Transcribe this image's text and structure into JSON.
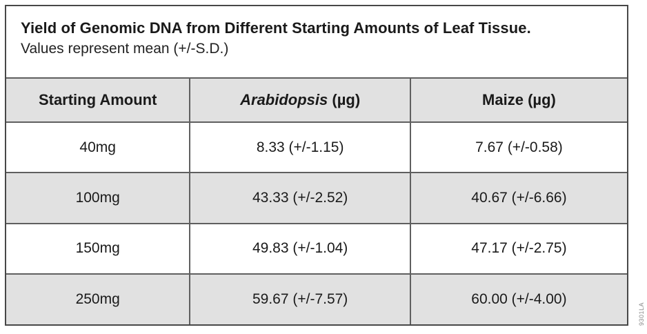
{
  "figure": {
    "title": "Yield of Genomic DNA from Different Starting Amounts of Leaf Tissue.",
    "subtitle": "Values represent mean (+/-S.D.)"
  },
  "table": {
    "header": {
      "col1": "Starting Amount",
      "col2_italic": "Arabidopsis",
      "col2_rest": " (µg)",
      "col3": "Maize (µg)"
    },
    "rows": [
      {
        "amount": "40mg",
        "arabidopsis": "8.33 (+/-1.15)",
        "maize": "7.67 (+/-0.58)"
      },
      {
        "amount": "100mg",
        "arabidopsis": "43.33 (+/-2.52)",
        "maize": "40.67 (+/-6.66)"
      },
      {
        "amount": "150mg",
        "arabidopsis": "49.83 (+/-1.04)",
        "maize": "47.17 (+/-2.75)"
      },
      {
        "amount": "250mg",
        "arabidopsis": "59.67 (+/-7.57)",
        "maize": "60.00 (+/-4.00)"
      }
    ]
  },
  "watermark": {
    "code": "9301LA"
  },
  "colors": {
    "row_stripe": "#e1e1e1",
    "grid_line": "#5f5f5f",
    "border": "#474747",
    "text": "#1a1a1a"
  }
}
